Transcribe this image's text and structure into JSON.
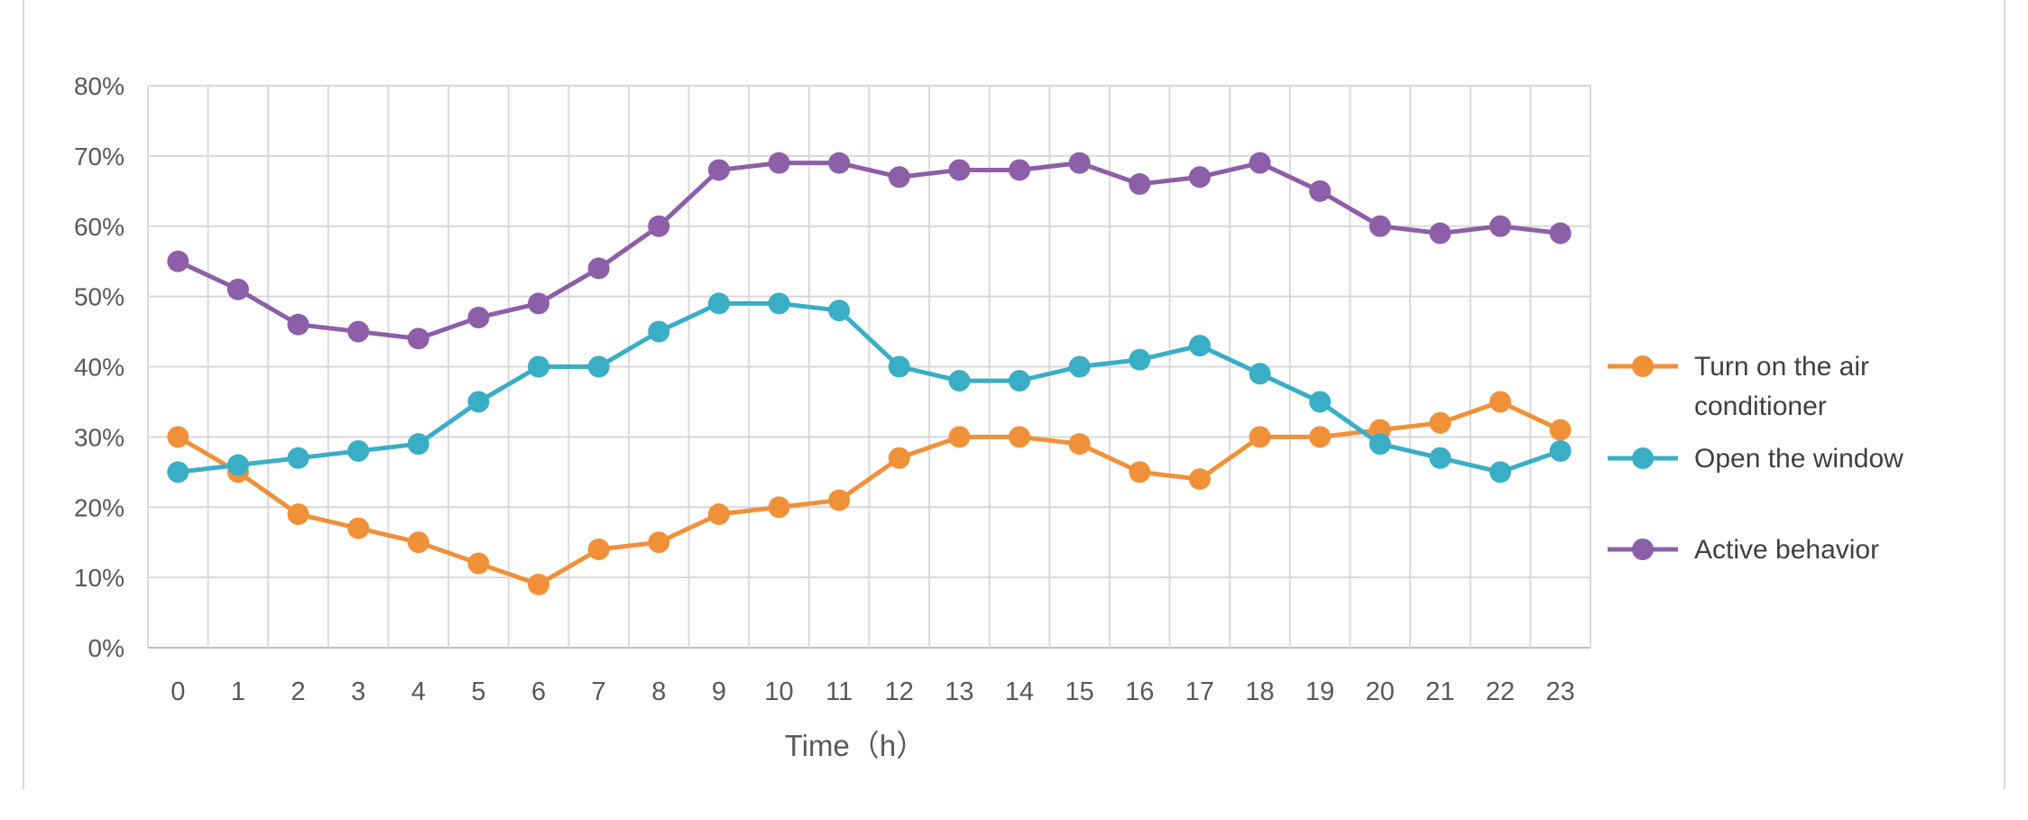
{
  "chart_data": {
    "type": "line",
    "title": "",
    "xlabel": "Time（h）",
    "ylabel": "",
    "categories": [
      "0",
      "1",
      "2",
      "3",
      "4",
      "5",
      "6",
      "7",
      "8",
      "9",
      "10",
      "11",
      "12",
      "13",
      "14",
      "15",
      "16",
      "17",
      "18",
      "19",
      "20",
      "21",
      "22",
      "23"
    ],
    "yticks": [
      "0%",
      "10%",
      "20%",
      "30%",
      "40%",
      "50%",
      "60%",
      "70%",
      "80%"
    ],
    "ylim": [
      0,
      80
    ],
    "grid": true,
    "legend_position": "right",
    "series": [
      {
        "name": "Turn on the air conditioner",
        "legend_lines": [
          "Turn on the air",
          "conditioner"
        ],
        "color": "#f0913a",
        "values": [
          30,
          25,
          19,
          17,
          15,
          12,
          9,
          14,
          15,
          19,
          20,
          21,
          27,
          30,
          30,
          29,
          25,
          24,
          30,
          30,
          31,
          32,
          35,
          31
        ]
      },
      {
        "name": "Open the window",
        "legend_lines": [
          "Open the window"
        ],
        "color": "#3aaec4",
        "values": [
          25,
          26,
          27,
          28,
          29,
          35,
          40,
          40,
          45,
          49,
          49,
          48,
          40,
          38,
          38,
          40,
          41,
          43,
          39,
          35,
          29,
          27,
          25,
          28
        ]
      },
      {
        "name": "Active behavior",
        "legend_lines": [
          "Active behavior"
        ],
        "color": "#8c5fa8",
        "values": [
          55,
          51,
          46,
          45,
          44,
          47,
          49,
          54,
          60,
          68,
          69,
          69,
          67,
          68,
          68,
          69,
          66,
          67,
          69,
          65,
          60,
          59,
          60,
          59
        ]
      }
    ]
  }
}
